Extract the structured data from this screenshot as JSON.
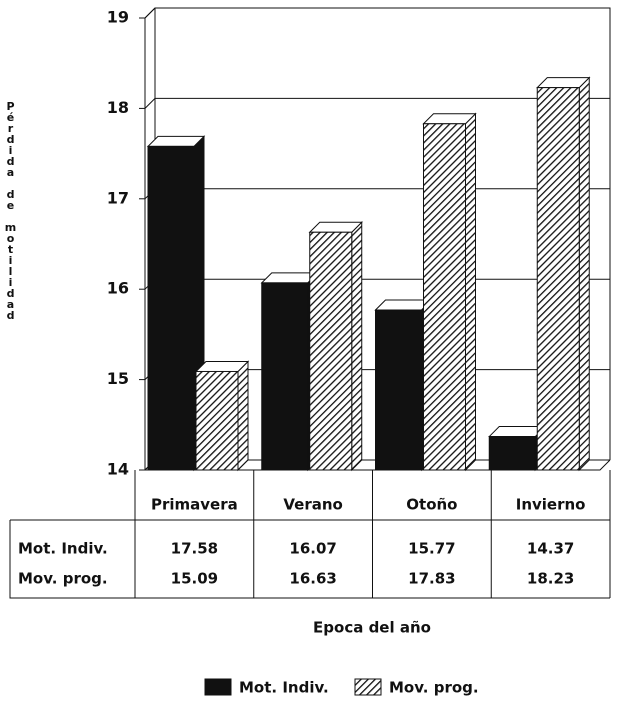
{
  "chart_data": {
    "type": "bar3d",
    "y_label": "Pérdida de motilidad",
    "x_label": "Epoca del año",
    "categories": [
      "Primavera",
      "Verano",
      "Otoño",
      "Invierno"
    ],
    "series": [
      {
        "name": "Mot. Indiv.",
        "color": "#111111",
        "values": [
          17.58,
          16.07,
          15.77,
          14.37
        ]
      },
      {
        "name": "Mov. prog.",
        "color": "hatch",
        "values": [
          15.09,
          16.63,
          17.83,
          18.23
        ]
      }
    ],
    "ylim": [
      14,
      19
    ],
    "yticks": [
      14,
      15,
      16,
      17,
      18,
      19
    ],
    "grid": true
  }
}
